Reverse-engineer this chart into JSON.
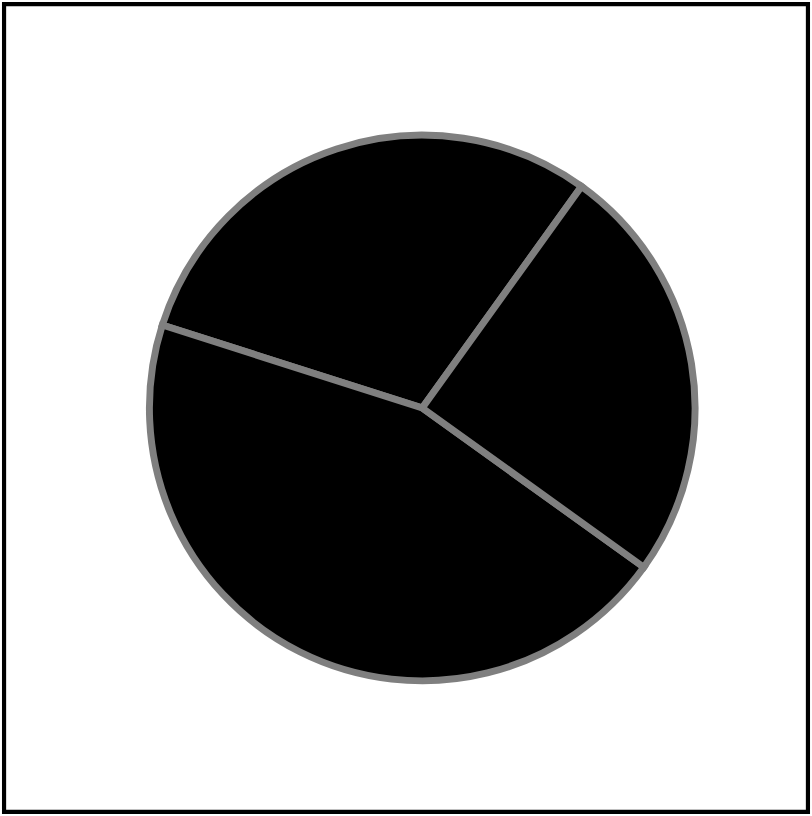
{
  "chart_data": {
    "type": "pie",
    "categories": [
      null,
      null,
      null
    ],
    "values": [
      30,
      45,
      25
    ],
    "colors": [
      "#000000",
      "#000000",
      "#000000"
    ]
  }
}
